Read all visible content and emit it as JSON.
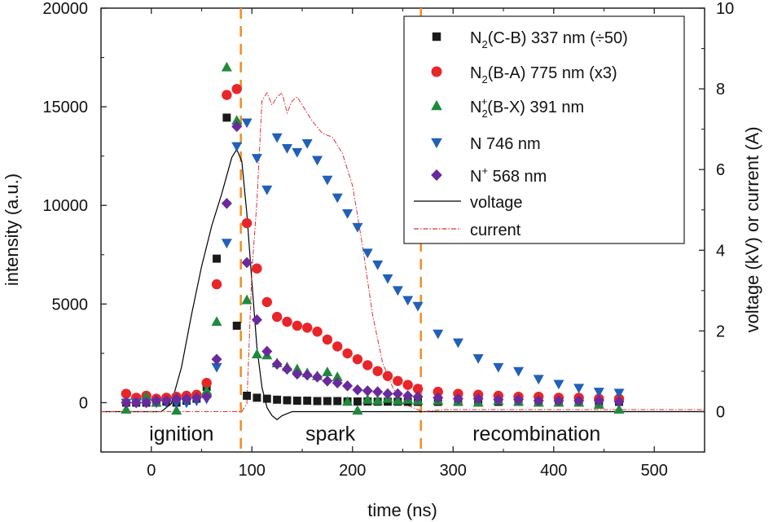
{
  "chart_data": {
    "type": "scatter",
    "xlabel": "time (ns)",
    "ylabel": "intensity (a.u.)",
    "y2label": "voltage (kV) or current (A)",
    "xlim": [
      -50,
      550
    ],
    "ylim": [
      -2500,
      20000
    ],
    "y2lim": [
      -1,
      10
    ],
    "xticks": [
      0,
      100,
      200,
      300,
      400,
      500
    ],
    "yticks": [
      0,
      5000,
      10000,
      15000,
      20000
    ],
    "y2ticks": [
      0,
      2,
      4,
      6,
      8,
      10
    ],
    "phase_boundaries_ns": [
      89,
      268
    ],
    "phase_labels": [
      {
        "text": "ignition",
        "x": 30
      },
      {
        "text": "spark",
        "x": 178
      },
      {
        "text": "recombination",
        "x": 383
      }
    ],
    "series": [
      {
        "name": "N2(C-B) 337 nm (÷50)",
        "label_parts": [
          "N",
          "2",
          "(C-B) 337 nm (÷50)"
        ],
        "label_mode": "sub",
        "marker": "square",
        "color": "#1a1a1a",
        "x": [
          -25,
          -15,
          -5,
          5,
          15,
          25,
          35,
          45,
          55,
          65,
          75,
          85,
          95,
          105,
          115,
          125,
          135,
          145,
          155,
          165,
          175,
          185,
          195,
          205,
          215,
          225,
          235,
          245,
          255,
          265,
          285,
          305,
          325,
          345,
          365,
          385,
          405,
          425,
          445,
          465
        ],
        "values": [
          0,
          0,
          0,
          0,
          50,
          0,
          100,
          200,
          800,
          7300,
          14450,
          3900,
          350,
          250,
          200,
          150,
          120,
          100,
          100,
          80,
          80,
          80,
          60,
          60,
          60,
          50,
          50,
          50,
          40,
          40,
          40,
          40,
          40,
          40,
          40,
          40,
          40,
          40,
          40,
          40
        ]
      },
      {
        "name": "N2(B-A) 775 nm (x3)",
        "label_parts": [
          "N",
          "2",
          "(B-A) 775 nm (x3)"
        ],
        "label_mode": "sub",
        "marker": "circle",
        "color": "#e8262a",
        "x": [
          -25,
          -15,
          -5,
          5,
          15,
          25,
          35,
          45,
          55,
          65,
          75,
          85,
          95,
          105,
          115,
          125,
          135,
          145,
          155,
          165,
          175,
          185,
          195,
          205,
          215,
          225,
          235,
          245,
          255,
          265,
          285,
          305,
          325,
          345,
          365,
          385,
          405,
          425,
          445,
          465
        ],
        "values": [
          450,
          250,
          350,
          200,
          250,
          300,
          350,
          400,
          1000,
          6000,
          15600,
          15900,
          9100,
          6800,
          5100,
          4350,
          4100,
          3900,
          3800,
          3600,
          3200,
          2850,
          2500,
          2200,
          1900,
          1600,
          1350,
          1100,
          900,
          700,
          550,
          450,
          400,
          350,
          300,
          300,
          250,
          250,
          200,
          200
        ]
      },
      {
        "name": "N2+(B-X) 391 nm",
        "label_parts": [
          "N",
          "2",
          "+",
          "(B-X) 391 nm"
        ],
        "label_mode": "subsup",
        "marker": "triangle-up",
        "color": "#1e8a3c",
        "x": [
          -25,
          -5,
          5,
          25,
          55,
          65,
          75,
          85,
          95,
          105,
          115,
          125,
          135,
          145,
          155,
          165,
          175,
          185,
          195,
          205,
          215,
          225,
          235,
          245,
          255,
          265,
          285,
          305,
          325,
          345,
          365,
          385,
          405,
          425,
          445,
          465
        ],
        "values": [
          -350,
          300,
          0,
          -400,
          600,
          4100,
          17000,
          14300,
          5200,
          2450,
          2400,
          2000,
          1800,
          1700,
          1500,
          1350,
          1550,
          1300,
          50,
          -400,
          150,
          100,
          200,
          100,
          150,
          100,
          100,
          50,
          0,
          100,
          50,
          0,
          0,
          0,
          -100,
          -350
        ]
      },
      {
        "name": "N 746 nm",
        "label_parts": [
          "N 746 nm"
        ],
        "label_mode": "plain",
        "marker": "triangle-down",
        "color": "#2060b8",
        "x": [
          -25,
          -15,
          -5,
          5,
          15,
          25,
          35,
          45,
          55,
          65,
          75,
          85,
          95,
          105,
          115,
          125,
          135,
          145,
          155,
          165,
          175,
          185,
          195,
          205,
          215,
          225,
          235,
          245,
          255,
          265,
          285,
          305,
          325,
          345,
          365,
          385,
          405,
          425,
          445,
          465
        ],
        "values": [
          0,
          0,
          0,
          0,
          0,
          0,
          0,
          100,
          200,
          1800,
          8100,
          13000,
          14200,
          12400,
          10800,
          13450,
          12900,
          12700,
          13150,
          12300,
          11300,
          10400,
          9600,
          8900,
          7600,
          7000,
          6300,
          5700,
          5200,
          4900,
          3500,
          3050,
          2250,
          1800,
          1600,
          1200,
          950,
          750,
          550,
          500
        ]
      },
      {
        "name": "N+ 568 nm",
        "label_parts": [
          "N",
          "+",
          " 568 nm"
        ],
        "label_mode": "sup",
        "marker": "diamond",
        "color": "#6a2a9c",
        "x": [
          -25,
          -15,
          -5,
          5,
          15,
          25,
          35,
          45,
          55,
          65,
          75,
          85,
          95,
          105,
          115,
          125,
          135,
          145,
          155,
          165,
          175,
          185,
          195,
          205,
          215,
          225,
          235,
          245,
          255,
          265,
          285,
          305,
          325,
          345,
          365,
          385,
          405,
          425,
          445,
          465
        ],
        "values": [
          0,
          0,
          0,
          100,
          100,
          200,
          200,
          250,
          300,
          2200,
          10100,
          14000,
          7100,
          4200,
          2600,
          1950,
          1700,
          1450,
          1400,
          1300,
          1100,
          1000,
          850,
          650,
          600,
          550,
          450,
          450,
          350,
          300,
          250,
          200,
          200,
          150,
          150,
          100,
          100,
          100,
          100,
          50
        ]
      },
      {
        "name": "voltage",
        "label_parts": [
          "voltage"
        ],
        "label_mode": "plain",
        "marker": "line",
        "color": "#000000",
        "axis": "right",
        "x": [
          -50,
          0,
          10,
          20,
          30,
          40,
          50,
          60,
          70,
          80,
          85,
          90,
          95,
          100,
          105,
          110,
          115,
          120,
          125,
          130,
          140,
          200,
          270,
          300,
          550
        ],
        "values": [
          0,
          0,
          0,
          0.2,
          1.1,
          2.4,
          3.6,
          4.6,
          5.4,
          6.3,
          6.5,
          6.2,
          4.9,
          3.2,
          1.6,
          0.6,
          0.1,
          -0.1,
          -0.2,
          -0.1,
          0,
          0,
          0,
          0,
          0
        ]
      },
      {
        "name": "current",
        "label_parts": [
          "current"
        ],
        "label_mode": "plain",
        "marker": "dashdot",
        "color": "#e03030",
        "axis": "right",
        "x": [
          -50,
          0,
          50,
          80,
          90,
          95,
          100,
          105,
          110,
          115,
          120,
          125,
          130,
          135,
          140,
          145,
          150,
          160,
          170,
          180,
          190,
          200,
          210,
          220,
          230,
          240,
          250,
          260,
          270,
          290,
          320,
          550
        ],
        "values": [
          0,
          0,
          0,
          0,
          0,
          0.2,
          3.5,
          5.2,
          7.7,
          7.9,
          7.6,
          7.8,
          7.9,
          7.4,
          7.7,
          7.8,
          7.6,
          7.2,
          6.9,
          6.8,
          6.4,
          5.6,
          4.1,
          2.4,
          1.2,
          0.6,
          0.2,
          0.1,
          0,
          0.05,
          0.05,
          0.05
        ]
      }
    ]
  }
}
